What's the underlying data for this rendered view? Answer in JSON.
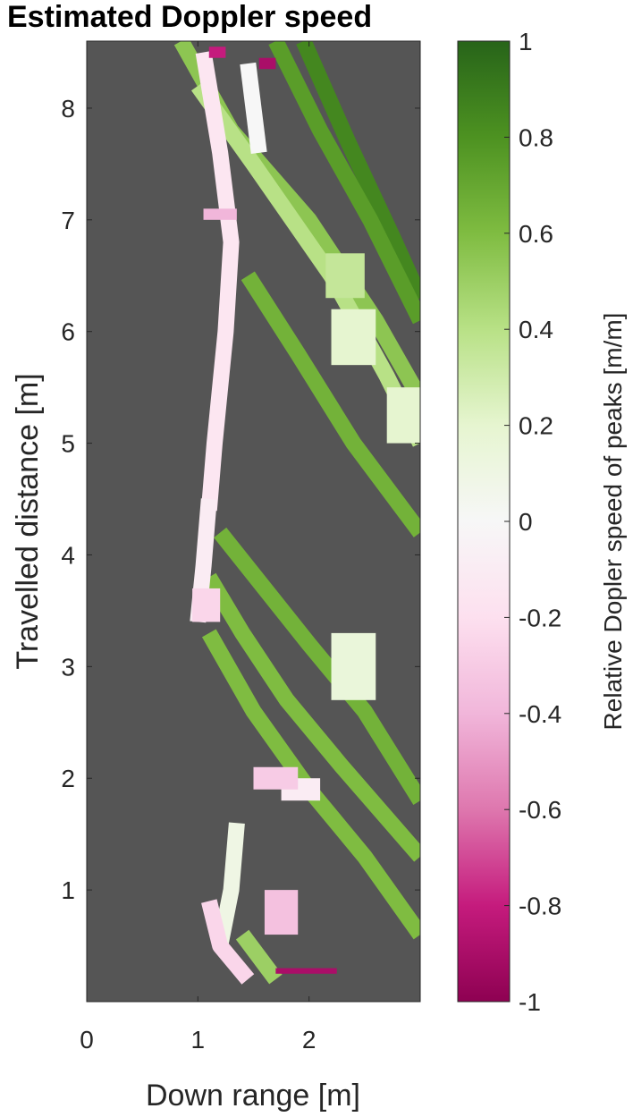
{
  "chart_data": {
    "type": "heatmap",
    "title": "Estimated Doppler speed",
    "xlabel": "Down range [m]",
    "ylabel": "Travelled distance [m]",
    "xlim": [
      0,
      3.0
    ],
    "ylim": [
      0,
      8.6
    ],
    "xticks": [
      "0",
      "1",
      "2"
    ],
    "xtick_values": [
      0,
      1,
      2
    ],
    "yticks": [
      "1",
      "2",
      "3",
      "4",
      "5",
      "6",
      "7",
      "8"
    ],
    "ytick_values": [
      1,
      2,
      3,
      4,
      5,
      6,
      7,
      8
    ],
    "background_color": "#555555",
    "colorbar": {
      "label": "Relative Dopler speed of peaks [m/m]",
      "limits": [
        -1,
        1
      ],
      "ticks": [
        "1",
        "0.8",
        "0.6",
        "0.4",
        "0.2",
        "0",
        "-0.2",
        "-0.4",
        "-0.6",
        "-0.8",
        "-1"
      ],
      "tick_values": [
        1,
        0.8,
        0.6,
        0.4,
        0.2,
        0,
        -0.2,
        -0.4,
        -0.6,
        -0.8,
        -1
      ],
      "colormap": "PiYG",
      "colors": [
        "#8e0152",
        "#c51b7d",
        "#de77ae",
        "#f1b6da",
        "#fde0ef",
        "#f7f7f7",
        "#e6f5d0",
        "#b8e186",
        "#7fbc41",
        "#4d9221",
        "#276419"
      ]
    },
    "tracks": [
      {
        "points": [
          [
            1.95,
            8.6
          ],
          [
            2.35,
            7.7
          ],
          [
            2.75,
            6.85
          ],
          [
            3.0,
            6.3
          ]
        ],
        "value": 0.85
      },
      {
        "points": [
          [
            1.7,
            8.6
          ],
          [
            2.1,
            7.8
          ],
          [
            2.55,
            7.0
          ],
          [
            3.0,
            6.1
          ]
        ],
        "value": 0.75
      },
      {
        "points": [
          [
            0.85,
            8.6
          ],
          [
            1.3,
            7.8
          ],
          [
            2.0,
            7.0
          ],
          [
            2.6,
            6.1
          ],
          [
            3.0,
            5.4
          ]
        ],
        "value": 0.55
      },
      {
        "points": [
          [
            1.0,
            8.2
          ],
          [
            1.5,
            7.5
          ],
          [
            2.2,
            6.5
          ],
          [
            2.7,
            5.6
          ],
          [
            3.0,
            5.0
          ]
        ],
        "value": 0.4
      },
      {
        "points": [
          [
            1.45,
            6.5
          ],
          [
            1.9,
            5.8
          ],
          [
            2.4,
            5.0
          ],
          [
            3.0,
            4.2
          ]
        ],
        "value": 0.65
      },
      {
        "points": [
          [
            1.2,
            4.2
          ],
          [
            1.6,
            3.7
          ],
          [
            2.0,
            3.2
          ],
          [
            2.5,
            2.6
          ],
          [
            3.0,
            1.8
          ]
        ],
        "value": 0.65
      },
      {
        "points": [
          [
            1.1,
            3.8
          ],
          [
            1.4,
            3.3
          ],
          [
            1.8,
            2.7
          ],
          [
            2.3,
            2.1
          ],
          [
            3.0,
            1.3
          ]
        ],
        "value": 0.6
      },
      {
        "points": [
          [
            1.1,
            3.3
          ],
          [
            1.5,
            2.6
          ],
          [
            2.0,
            1.9
          ],
          [
            2.5,
            1.3
          ],
          [
            3.0,
            0.6
          ]
        ],
        "value": 0.6
      },
      {
        "points": [
          [
            1.05,
            8.5
          ],
          [
            1.2,
            7.6
          ],
          [
            1.3,
            6.8
          ],
          [
            1.25,
            6.0
          ],
          [
            1.15,
            5.0
          ],
          [
            1.1,
            4.4
          ]
        ],
        "value": -0.15
      },
      {
        "points": [
          [
            1.1,
            4.5
          ],
          [
            1.05,
            3.9
          ],
          [
            1.0,
            3.4
          ]
        ],
        "value": -0.1
      },
      {
        "points": [
          [
            1.45,
            8.4
          ],
          [
            1.55,
            7.6
          ]
        ],
        "value": 0.0
      },
      {
        "points": [
          [
            1.35,
            1.6
          ],
          [
            1.3,
            1.0
          ],
          [
            1.2,
            0.5
          ]
        ],
        "value": 0.1
      },
      {
        "points": [
          [
            1.1,
            0.9
          ],
          [
            1.2,
            0.5
          ],
          [
            1.45,
            0.2
          ]
        ],
        "value": -0.25
      },
      {
        "points": [
          [
            1.4,
            0.6
          ],
          [
            1.7,
            0.2
          ]
        ],
        "value": 0.5
      }
    ],
    "patches": [
      {
        "x": [
          2.2,
          2.6
        ],
        "y": [
          2.7,
          3.3
        ],
        "value": 0.15
      },
      {
        "x": [
          2.2,
          2.6
        ],
        "y": [
          5.7,
          6.2
        ],
        "value": 0.2
      },
      {
        "x": [
          2.7,
          3.0
        ],
        "y": [
          5.0,
          5.5
        ],
        "value": 0.2
      },
      {
        "x": [
          1.75,
          2.1
        ],
        "y": [
          1.8,
          2.0
        ],
        "value": -0.1
      },
      {
        "x": [
          1.6,
          1.9
        ],
        "y": [
          0.6,
          1.0
        ],
        "value": -0.35
      },
      {
        "x": [
          1.05,
          1.35
        ],
        "y": [
          7.0,
          7.1
        ],
        "value": -0.4
      },
      {
        "x": [
          1.1,
          1.25
        ],
        "y": [
          8.45,
          8.55
        ],
        "value": -0.8
      },
      {
        "x": [
          1.55,
          1.7
        ],
        "y": [
          8.35,
          8.45
        ],
        "value": -0.9
      },
      {
        "x": [
          1.7,
          2.25
        ],
        "y": [
          0.25,
          0.3
        ],
        "value": -0.9
      },
      {
        "x": [
          1.5,
          1.9
        ],
        "y": [
          1.9,
          2.1
        ],
        "value": -0.3
      },
      {
        "x": [
          0.95,
          1.2
        ],
        "y": [
          3.4,
          3.7
        ],
        "value": -0.25
      },
      {
        "x": [
          2.15,
          2.5
        ],
        "y": [
          6.3,
          6.7
        ],
        "value": 0.35
      }
    ]
  }
}
